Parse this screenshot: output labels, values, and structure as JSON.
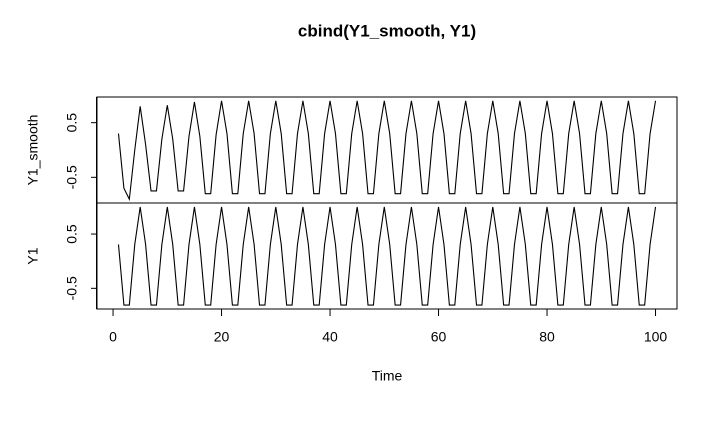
{
  "chart_data": {
    "type": "line",
    "title": "cbind(Y1_smooth, Y1)",
    "x_label": "Time",
    "x": [
      1,
      2,
      3,
      4,
      5,
      6,
      7,
      8,
      9,
      10,
      11,
      12,
      13,
      14,
      15,
      16,
      17,
      18,
      19,
      20,
      21,
      22,
      23,
      24,
      25,
      26,
      27,
      28,
      29,
      30,
      31,
      32,
      33,
      34,
      35,
      36,
      37,
      38,
      39,
      40,
      41,
      42,
      43,
      44,
      45,
      46,
      47,
      48,
      49,
      50,
      51,
      52,
      53,
      54,
      55,
      56,
      57,
      58,
      59,
      60,
      61,
      62,
      63,
      64,
      65,
      66,
      67,
      68,
      69,
      70,
      71,
      72,
      73,
      74,
      75,
      76,
      77,
      78,
      79,
      80,
      81,
      82,
      83,
      84,
      85,
      86,
      87,
      88,
      89,
      90,
      91,
      92,
      93,
      94,
      95,
      96,
      97,
      98,
      99,
      100
    ],
    "xlim": [
      -2.96,
      103.96
    ],
    "xticks": [
      0,
      20,
      40,
      60,
      80,
      100
    ],
    "series": [
      {
        "name": "Y1_smooth",
        "color": "#000000",
        "ylim": [
          -0.97,
          0.97
        ],
        "yticks": [
          -0.5,
          0.5
        ],
        "values": [
          0.3,
          -0.7,
          -0.9,
          0.0,
          0.8,
          0.1,
          -0.75,
          -0.75,
          0.2,
          0.82,
          0.2,
          -0.75,
          -0.75,
          0.25,
          0.88,
          0.25,
          -0.8,
          -0.8,
          0.28,
          0.9,
          0.3,
          -0.8,
          -0.8,
          0.3,
          0.9,
          0.3,
          -0.8,
          -0.8,
          0.3,
          0.9,
          0.3,
          -0.8,
          -0.8,
          0.3,
          0.9,
          0.3,
          -0.8,
          -0.8,
          0.3,
          0.9,
          0.3,
          -0.8,
          -0.8,
          0.3,
          0.9,
          0.3,
          -0.8,
          -0.8,
          0.3,
          0.9,
          0.3,
          -0.8,
          -0.8,
          0.3,
          0.9,
          0.3,
          -0.8,
          -0.8,
          0.3,
          0.9,
          0.3,
          -0.8,
          -0.8,
          0.3,
          0.9,
          0.3,
          -0.8,
          -0.8,
          0.3,
          0.9,
          0.3,
          -0.8,
          -0.8,
          0.3,
          0.9,
          0.3,
          -0.8,
          -0.8,
          0.3,
          0.9,
          0.3,
          -0.8,
          -0.8,
          0.3,
          0.9,
          0.3,
          -0.8,
          -0.8,
          0.3,
          0.9,
          0.3,
          -0.8,
          -0.8,
          0.3,
          0.9,
          0.3,
          -0.8,
          -0.8,
          0.3,
          0.9
        ]
      },
      {
        "name": "Y1",
        "color": "#000000",
        "ylim": [
          -0.881,
          1.072
        ],
        "yticks": [
          -0.5,
          0.5
        ],
        "values": [
          0.309,
          -0.809,
          -0.809,
          0.309,
          1,
          0.309,
          -0.809,
          -0.809,
          0.309,
          1,
          0.309,
          -0.809,
          -0.809,
          0.309,
          1,
          0.309,
          -0.809,
          -0.809,
          0.309,
          1,
          0.309,
          -0.809,
          -0.809,
          0.309,
          1,
          0.309,
          -0.809,
          -0.809,
          0.309,
          1,
          0.309,
          -0.809,
          -0.809,
          0.309,
          1,
          0.309,
          -0.809,
          -0.809,
          0.309,
          1,
          0.309,
          -0.809,
          -0.809,
          0.309,
          1,
          0.309,
          -0.809,
          -0.809,
          0.309,
          1,
          0.309,
          -0.809,
          -0.809,
          0.309,
          1,
          0.309,
          -0.809,
          -0.809,
          0.309,
          1,
          0.309,
          -0.809,
          -0.809,
          0.309,
          1,
          0.309,
          -0.809,
          -0.809,
          0.309,
          1,
          0.309,
          -0.809,
          -0.809,
          0.309,
          1,
          0.309,
          -0.809,
          -0.809,
          0.309,
          1,
          0.309,
          -0.809,
          -0.809,
          0.309,
          1,
          0.309,
          -0.809,
          -0.809,
          0.309,
          1,
          0.309,
          -0.809,
          -0.809,
          0.309,
          1,
          0.309,
          -0.809,
          -0.809,
          0.309,
          1
        ]
      }
    ]
  }
}
